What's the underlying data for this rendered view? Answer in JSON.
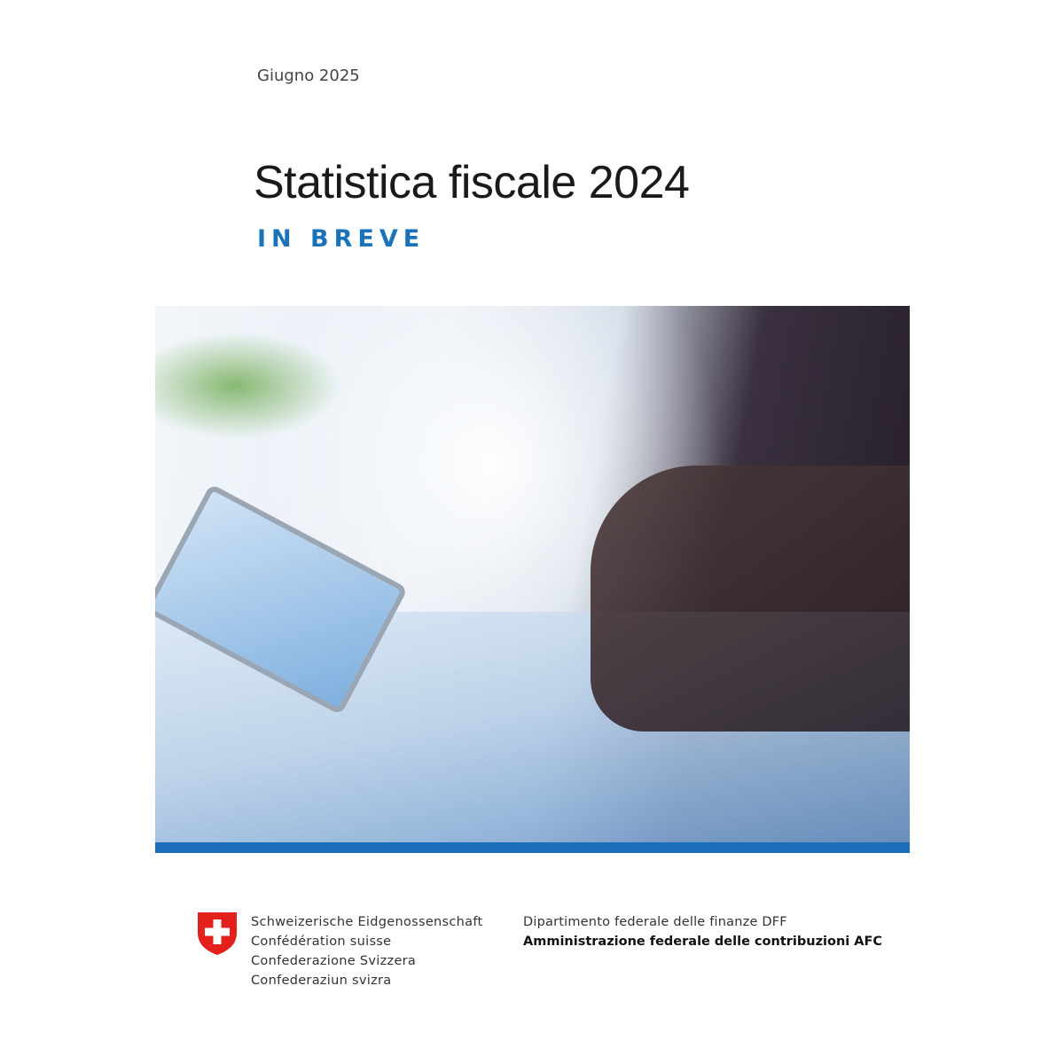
{
  "cover": {
    "date": "Giugno 2025",
    "title": "Statistica fiscale 2024",
    "subtitle": "IN BREVE",
    "accent_color": "#1a6fb8"
  },
  "footer": {
    "confederation_lines": [
      "Schweizerische Eidgenossenschaft",
      "Confédération suisse",
      "Confederazione Svizzera",
      "Confederaziun svizra"
    ],
    "department": "Dipartimento federale delle finanze DFF",
    "office": "Amministrazione federale delle contribuzioni AFC",
    "crest_icon": "swiss-cross-shield"
  }
}
